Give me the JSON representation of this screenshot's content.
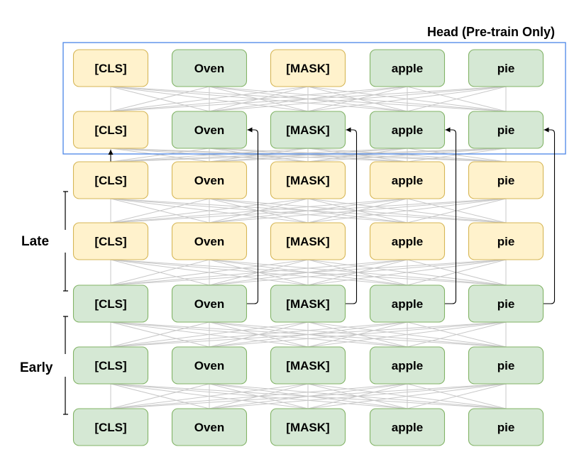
{
  "diagram": {
    "head_label": "Head (Pre-train Only)",
    "side_labels": {
      "late": "Late",
      "early": "Early"
    },
    "tokens": [
      "[CLS]",
      "Oven",
      "[MASK]",
      "apple",
      "pie"
    ],
    "colors": {
      "yellow_fill": "#fff2cc",
      "yellow_stroke": "#d6b656",
      "green_fill": "#d5e8d4",
      "green_stroke": "#82b366",
      "head_box": "#4a86e8",
      "edge": "#c8c8c8"
    },
    "rows": [
      {
        "name": "head-row-top",
        "colors": [
          "yellow",
          "green",
          "yellow",
          "green",
          "green"
        ]
      },
      {
        "name": "head-row-bottom",
        "colors": [
          "yellow",
          "green",
          "green",
          "green",
          "green"
        ]
      },
      {
        "name": "layer-row-1",
        "colors": [
          "yellow",
          "yellow",
          "yellow",
          "yellow",
          "yellow"
        ]
      },
      {
        "name": "layer-row-2",
        "colors": [
          "yellow",
          "yellow",
          "yellow",
          "yellow",
          "yellow"
        ]
      },
      {
        "name": "layer-row-3",
        "colors": [
          "green",
          "green",
          "green",
          "green",
          "green"
        ]
      },
      {
        "name": "layer-row-4",
        "colors": [
          "green",
          "green",
          "green",
          "green",
          "green"
        ]
      },
      {
        "name": "layer-row-5",
        "colors": [
          "green",
          "green",
          "green",
          "green",
          "green"
        ]
      }
    ]
  }
}
